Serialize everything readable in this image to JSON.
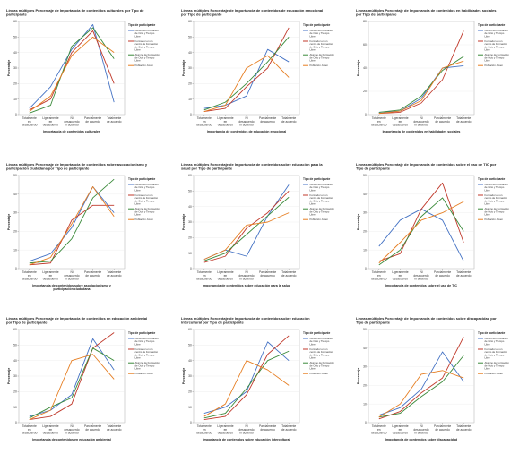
{
  "chart_data": [
    {
      "type": "line",
      "title": "Líneas múltiples Porcentaje de Importancia de contenidos culturales por Tipo de participante",
      "xlabel": "Importancia de contenidos culturales",
      "ylabel": "Porcentaje",
      "categories": [
        "Totalmente en desacuerdo",
        "Ligeramente en desacuerdo",
        "Ni desacuerdo ni acuerdo",
        "Parcialmente de acuerdo",
        "Totalmente de acuerdo"
      ],
      "ylim": [
        0,
        60
      ],
      "yticks": [
        0,
        10,
        20,
        30,
        40,
        50,
        60
      ],
      "legend_title": "Tipo de participante",
      "series": [
        {
          "name": "Centro de Formación de Ocio y Tiempo Libre",
          "color": "#4472c4",
          "values": [
            4,
            18,
            42,
            58,
            8
          ]
        },
        {
          "name": "Formador en un centro de Formación de Ocio y Tiempo Libre",
          "color": "#c0392b",
          "values": [
            3,
            10,
            40,
            54,
            20
          ]
        },
        {
          "name": "Alumno de Formación de Ocio y Tiempo Libre",
          "color": "#3a8a3a",
          "values": [
            1,
            6,
            44,
            56,
            36
          ]
        },
        {
          "name": "Población Joven",
          "color": "#e67e22",
          "values": [
            2,
            12,
            38,
            50,
            40
          ]
        }
      ]
    },
    {
      "type": "line",
      "title": "Líneas múltiples Porcentaje de Importancia de contenidos de educación emocional por Tipo de participante",
      "xlabel": "Importancia de contenidos de educación emocional",
      "ylabel": "Porcentaje",
      "categories": [
        "Totalmente en desacuerdo",
        "Ligeramente en desacuerdo",
        "Ni desacuerdo ni acuerdo",
        "Parcialmente de acuerdo",
        "Totalmente de acuerdo"
      ],
      "ylim": [
        0,
        60
      ],
      "yticks": [
        0,
        10,
        20,
        30,
        40,
        50,
        60
      ],
      "legend_title": "Tipo de participante",
      "series": [
        {
          "name": "Centro de Formación de Ocio y Tiempo Libre",
          "color": "#4472c4",
          "values": [
            4,
            6,
            12,
            42,
            34
          ]
        },
        {
          "name": "Formador en un centro de Formación de Ocio y Tiempo Libre",
          "color": "#c0392b",
          "values": [
            2,
            4,
            18,
            30,
            56
          ]
        },
        {
          "name": "Alumno de Formación de Ocio y Tiempo Libre",
          "color": "#3a8a3a",
          "values": [
            3,
            8,
            20,
            34,
            50
          ]
        },
        {
          "name": "Población Joven",
          "color": "#e67e22",
          "values": [
            2,
            6,
            30,
            38,
            24
          ]
        }
      ]
    },
    {
      "type": "line",
      "title": "Líneas múltiples Porcentaje de Importancia de contenidos en habilidades sociales por Tipo de participante",
      "xlabel": "Importancia de contenidos en habilidades sociales",
      "ylabel": "Porcentaje",
      "categories": [
        "Totalmente en desacuerdo",
        "Ligeramente en desacuerdo",
        "Ni desacuerdo ni acuerdo",
        "Parcialmente de acuerdo",
        "Totalmente de acuerdo"
      ],
      "ylim": [
        0,
        80
      ],
      "yticks": [
        0,
        20,
        40,
        60,
        80
      ],
      "legend_title": "Tipo de participante",
      "series": [
        {
          "name": "Centro de Formación de Ocio y Tiempo Libre",
          "color": "#4472c4",
          "values": [
            2,
            3,
            14,
            40,
            42
          ]
        },
        {
          "name": "Formador en un centro de Formación de Ocio y Tiempo Libre",
          "color": "#c0392b",
          "values": [
            1,
            2,
            10,
            30,
            72
          ]
        },
        {
          "name": "Alumno de Formación de Ocio y Tiempo Libre",
          "color": "#3a8a3a",
          "values": [
            2,
            4,
            16,
            38,
            50
          ]
        },
        {
          "name": "Población Joven",
          "color": "#e67e22",
          "values": [
            1,
            3,
            12,
            40,
            46
          ]
        }
      ]
    },
    {
      "type": "line",
      "title": "Líneas múltiples Porcentaje de Importancia de contenidos sobre asociacionismo y participación ciudadana por Tipo de participante",
      "xlabel": "Importancia de contenidos sobre asociacionismo y participación ciudadana",
      "ylabel": "Porcentaje",
      "categories": [
        "Totalmente en desacuerdo",
        "Ligeramente en desacuerdo",
        "Ni desacuerdo ni acuerdo",
        "Parcialmente de acuerdo",
        "Totalmente de acuerdo"
      ],
      "ylim": [
        0,
        50
      ],
      "yticks": [
        0,
        10,
        20,
        30,
        40,
        50
      ],
      "legend_title": "Tipo de participante",
      "series": [
        {
          "name": "Centro de Formación de Ocio y Tiempo Libre",
          "color": "#4472c4",
          "values": [
            4,
            8,
            22,
            44,
            30
          ]
        },
        {
          "name": "Formador en un centro de Formación de Ocio y Tiempo Libre",
          "color": "#c0392b",
          "values": [
            2,
            3,
            26,
            34,
            34
          ]
        },
        {
          "name": "Alumno de Formación de Ocio y Tiempo Libre",
          "color": "#3a8a3a",
          "values": [
            3,
            4,
            16,
            38,
            48
          ]
        },
        {
          "name": "Población Joven",
          "color": "#e67e22",
          "values": [
            2,
            6,
            24,
            44,
            28
          ]
        }
      ]
    },
    {
      "type": "line",
      "title": "Líneas múltiples Porcentaje de Importancia de contenidos sobre educación para la salud por Tipo de participante",
      "xlabel": "Importancia de contenidos sobre educación para la salud",
      "ylabel": "Porcentaje",
      "categories": [
        "Totalmente en desacuerdo",
        "Ligeramente en desacuerdo",
        "Ni desacuerdo ni acuerdo",
        "Parcialmente de acuerdo",
        "Totalmente de acuerdo"
      ],
      "ylim": [
        0,
        60
      ],
      "yticks": [
        0,
        10,
        20,
        30,
        40,
        50,
        60
      ],
      "legend_title": "Tipo de participante",
      "series": [
        {
          "name": "Centro de Formación de Ocio y Tiempo Libre",
          "color": "#4472c4",
          "values": [
            6,
            12,
            8,
            34,
            54
          ]
        },
        {
          "name": "Formador en un centro de Formación de Ocio y Tiempo Libre",
          "color": "#c0392b",
          "values": [
            4,
            8,
            26,
            36,
            50
          ]
        },
        {
          "name": "Alumno de Formación de Ocio y Tiempo Libre",
          "color": "#3a8a3a",
          "values": [
            5,
            10,
            22,
            34,
            46
          ]
        },
        {
          "name": "Población Joven",
          "color": "#e67e22",
          "values": [
            6,
            12,
            28,
            30,
            36
          ]
        }
      ]
    },
    {
      "type": "line",
      "title": "Líneas múltiples Porcentaje de Importancia de contenidos sobre el uso de TIC por Tipo de participante",
      "xlabel": "Importancia de contenidos sobre el uso de TIC",
      "ylabel": "Porcentaje",
      "categories": [
        "Totalmente en desacuerdo",
        "Ligeramente en desacuerdo",
        "Ni desacuerdo ni acuerdo",
        "Parcialmente de acuerdo",
        "Totalmente de acuerdo"
      ],
      "ylim": [
        0,
        50
      ],
      "yticks": [
        0,
        10,
        20,
        30,
        40,
        50
      ],
      "legend_title": "Tipo de participante",
      "series": [
        {
          "name": "Centro de Formación de Ocio y Tiempo Libre",
          "color": "#4472c4",
          "values": [
            12,
            26,
            32,
            26,
            4
          ]
        },
        {
          "name": "Formador en un centro de Formación de Ocio y Tiempo Libre",
          "color": "#c0392b",
          "values": [
            4,
            8,
            32,
            46,
            14
          ]
        },
        {
          "name": "Alumno de Formación de Ocio y Tiempo Libre",
          "color": "#3a8a3a",
          "values": [
            2,
            10,
            28,
            38,
            20
          ]
        },
        {
          "name": "Población Joven",
          "color": "#e67e22",
          "values": [
            3,
            14,
            26,
            30,
            36
          ]
        }
      ]
    },
    {
      "type": "line",
      "title": "Líneas múltiples Porcentaje de Importancia de contenidos en educación ambiental por Tipo de participante",
      "xlabel": "Importancia de contenidos en educación ambiental",
      "ylabel": "Porcentaje",
      "categories": [
        "Totalmente en desacuerdo",
        "Ligeramente en desacuerdo",
        "Ni desacuerdo ni acuerdo",
        "Parcialmente de acuerdo",
        "Totalmente de acuerdo"
      ],
      "ylim": [
        0,
        60
      ],
      "yticks": [
        0,
        10,
        20,
        30,
        40,
        50,
        60
      ],
      "legend_title": "Tipo de participante",
      "series": [
        {
          "name": "Centro de Formación de Ocio y Tiempo Libre",
          "color": "#4472c4",
          "values": [
            4,
            8,
            18,
            54,
            34
          ]
        },
        {
          "name": "Formador en un centro de Formación de Ocio y Tiempo Libre",
          "color": "#c0392b",
          "values": [
            2,
            4,
            12,
            48,
            58
          ]
        },
        {
          "name": "Alumno de Formación de Ocio y Tiempo Libre",
          "color": "#3a8a3a",
          "values": [
            3,
            10,
            16,
            48,
            40
          ]
        },
        {
          "name": "Población Joven",
          "color": "#e67e22",
          "values": [
            2,
            8,
            40,
            44,
            28
          ]
        }
      ]
    },
    {
      "type": "line",
      "title": "Líneas múltiples Porcentaje de Importancia de contenidos sobre educación intercultural por Tipo de participante",
      "xlabel": "Importancia de contenidos sobre educación intercultural",
      "ylabel": "Porcentaje",
      "categories": [
        "Totalmente en desacuerdo",
        "Ligeramente en desacuerdo",
        "Ni desacuerdo ni acuerdo",
        "Parcialmente de acuerdo",
        "Totalmente de acuerdo"
      ],
      "ylim": [
        0,
        60
      ],
      "yticks": [
        0,
        10,
        20,
        30,
        40,
        50,
        60
      ],
      "legend_title": "Tipo de participante",
      "series": [
        {
          "name": "Centro de Formación de Ocio y Tiempo Libre",
          "color": "#4472c4",
          "values": [
            6,
            10,
            20,
            52,
            40
          ]
        },
        {
          "name": "Formador en un centro de Formación de Ocio y Tiempo Libre",
          "color": "#c0392b",
          "values": [
            2,
            4,
            18,
            44,
            56
          ]
        },
        {
          "name": "Alumno de Formación de Ocio y Tiempo Libre",
          "color": "#3a8a3a",
          "values": [
            3,
            6,
            22,
            40,
            46
          ]
        },
        {
          "name": "Población Joven",
          "color": "#e67e22",
          "values": [
            4,
            12,
            40,
            34,
            24
          ]
        }
      ]
    },
    {
      "type": "line",
      "title": "Líneas múltiples Porcentaje de Importancia de contenidos sobre discapacidad por Tipo de participante",
      "xlabel": "Importancia de contenidos sobre discapacidad",
      "ylabel": "Porcentaje",
      "categories": [
        "Totalmente en desacuerdo",
        "Ligeramente en desacuerdo",
        "Ni desacuerdo ni acuerdo",
        "Parcialmente de acuerdo",
        "Totalmente de acuerdo"
      ],
      "ylim": [
        0,
        50
      ],
      "yticks": [
        0,
        10,
        20,
        30,
        40,
        50
      ],
      "legend_title": "Tipo de participante",
      "series": [
        {
          "name": "Centro de Formación de Ocio y Tiempo Libre",
          "color": "#4472c4",
          "values": [
            4,
            8,
            18,
            38,
            22
          ]
        },
        {
          "name": "Formador en un centro de Formación de Ocio y Tiempo Libre",
          "color": "#c0392b",
          "values": [
            2,
            6,
            16,
            24,
            46
          ]
        },
        {
          "name": "Alumno de Formación de Ocio y Tiempo Libre",
          "color": "#3a8a3a",
          "values": [
            3,
            5,
            14,
            22,
            36
          ]
        },
        {
          "name": "Población Joven",
          "color": "#e67e22",
          "values": [
            3,
            10,
            26,
            28,
            24
          ]
        }
      ]
    }
  ]
}
